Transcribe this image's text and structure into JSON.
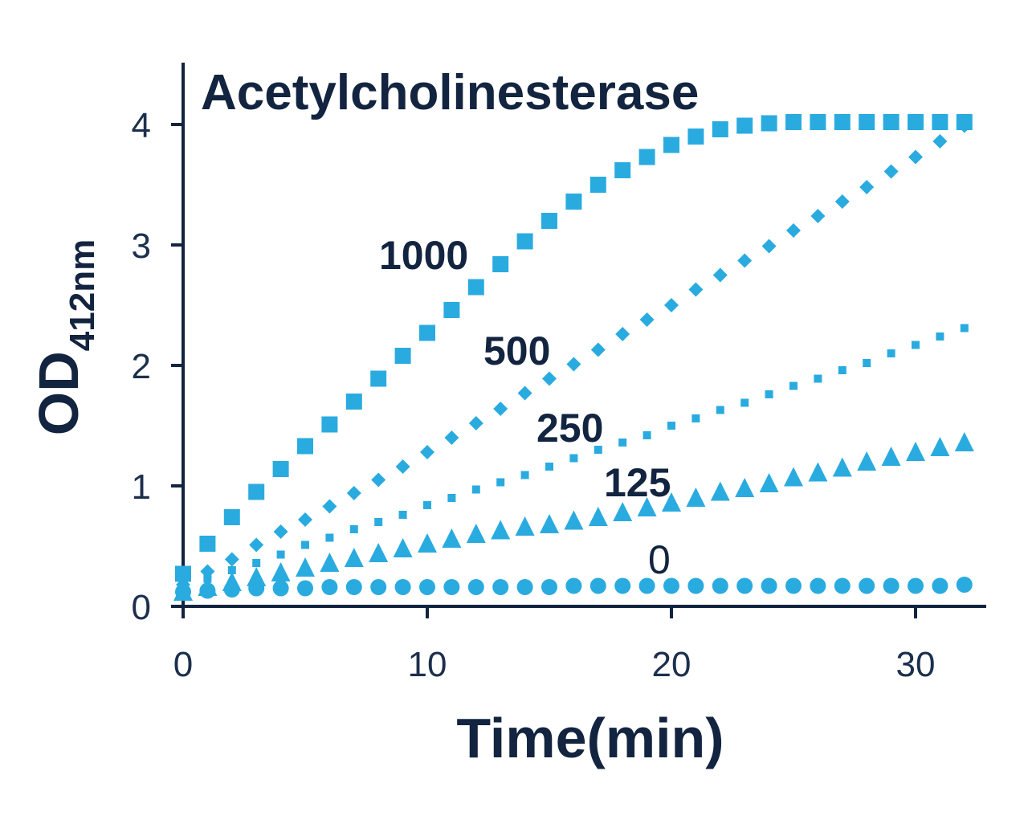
{
  "chart_data": {
    "type": "scatter",
    "title": "Acetylcholinesterase",
    "xlabel": "Time(min)",
    "ylabel": "OD",
    "ylabel_subscript": "412nm",
    "xlim": [
      0,
      33
    ],
    "ylim": [
      0,
      4.5
    ],
    "x_ticks": [
      "0",
      "10",
      "20",
      "30"
    ],
    "y_ticks": [
      "0",
      "1",
      "2",
      "3",
      "4"
    ],
    "grid": false,
    "color": "#2aabe0",
    "x": [
      0,
      1,
      2,
      3,
      4,
      5,
      6,
      7,
      8,
      9,
      10,
      11,
      12,
      13,
      14,
      15,
      16,
      17,
      18,
      19,
      20,
      21,
      22,
      23,
      24,
      25,
      26,
      27,
      28,
      29,
      30,
      31,
      32
    ],
    "series": [
      {
        "name": "1000",
        "marker": "square",
        "values": [
          0.27,
          0.52,
          0.74,
          0.95,
          1.14,
          1.33,
          1.51,
          1.7,
          1.89,
          2.08,
          2.27,
          2.46,
          2.65,
          2.84,
          3.03,
          3.2,
          3.36,
          3.5,
          3.62,
          3.73,
          3.83,
          3.9,
          3.96,
          3.99,
          4.01,
          4.02,
          4.02,
          4.02,
          4.02,
          4.02,
          4.02,
          4.02,
          4.02
        ]
      },
      {
        "name": "500",
        "marker": "diamond",
        "values": [
          0.18,
          0.29,
          0.39,
          0.51,
          0.62,
          0.72,
          0.83,
          0.94,
          1.05,
          1.16,
          1.28,
          1.4,
          1.52,
          1.64,
          1.77,
          1.89,
          2.01,
          2.13,
          2.26,
          2.38,
          2.5,
          2.63,
          2.75,
          2.87,
          2.99,
          3.12,
          3.24,
          3.36,
          3.48,
          3.61,
          3.73,
          3.86,
          3.99
        ]
      },
      {
        "name": "250",
        "marker": "small-square",
        "values": [
          0.14,
          0.23,
          0.3,
          0.36,
          0.43,
          0.51,
          0.57,
          0.64,
          0.7,
          0.76,
          0.84,
          0.9,
          0.97,
          1.03,
          1.09,
          1.16,
          1.23,
          1.3,
          1.36,
          1.42,
          1.5,
          1.56,
          1.63,
          1.69,
          1.76,
          1.83,
          1.89,
          1.96,
          2.02,
          2.1,
          2.17,
          2.24,
          2.31
        ]
      },
      {
        "name": "125",
        "marker": "triangle",
        "values": [
          0.12,
          0.16,
          0.2,
          0.24,
          0.28,
          0.32,
          0.36,
          0.4,
          0.44,
          0.48,
          0.52,
          0.56,
          0.6,
          0.63,
          0.66,
          0.68,
          0.71,
          0.74,
          0.78,
          0.82,
          0.86,
          0.9,
          0.95,
          0.98,
          1.02,
          1.07,
          1.11,
          1.15,
          1.2,
          1.24,
          1.28,
          1.32,
          1.36
        ]
      },
      {
        "name": "0",
        "marker": "circle",
        "values": [
          0.12,
          0.13,
          0.14,
          0.15,
          0.15,
          0.15,
          0.16,
          0.16,
          0.16,
          0.16,
          0.16,
          0.16,
          0.16,
          0.16,
          0.16,
          0.16,
          0.17,
          0.17,
          0.17,
          0.17,
          0.17,
          0.17,
          0.17,
          0.17,
          0.17,
          0.17,
          0.17,
          0.17,
          0.17,
          0.17,
          0.17,
          0.17,
          0.18
        ]
      }
    ]
  }
}
